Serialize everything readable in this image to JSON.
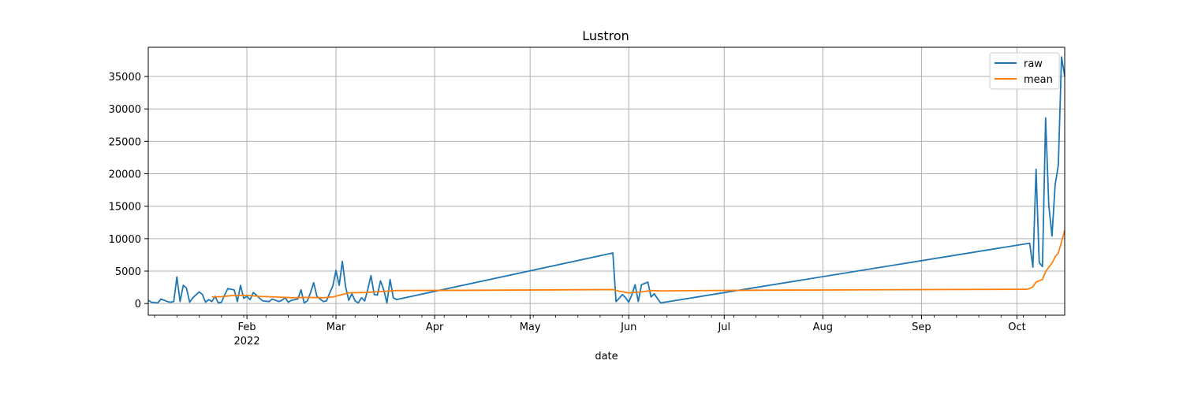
{
  "chart_data": {
    "type": "line",
    "title": "Lustron",
    "xlabel": "date",
    "ylabel": "",
    "x_range": [
      "2022-01-01",
      "2022-10-16"
    ],
    "ylim": [
      -1800,
      39500
    ],
    "grid": true,
    "legend_position": "top-right",
    "x_ticks": [
      {
        "date": "2022-02-01",
        "label": "Feb",
        "sublabel": "2022"
      },
      {
        "date": "2022-03-01",
        "label": "Mar"
      },
      {
        "date": "2022-04-01",
        "label": "Apr"
      },
      {
        "date": "2022-05-01",
        "label": "May"
      },
      {
        "date": "2022-06-01",
        "label": "Jun"
      },
      {
        "date": "2022-07-01",
        "label": "Jul"
      },
      {
        "date": "2022-08-01",
        "label": "Aug"
      },
      {
        "date": "2022-09-01",
        "label": "Sep"
      },
      {
        "date": "2022-10-01",
        "label": "Oct"
      }
    ],
    "y_ticks": [
      0,
      5000,
      10000,
      15000,
      20000,
      25000,
      30000,
      35000
    ],
    "series": [
      {
        "name": "raw",
        "color": "#1f77b4",
        "points": [
          [
            "2022-01-01",
            500
          ],
          [
            "2022-01-02",
            200
          ],
          [
            "2022-01-04",
            100
          ],
          [
            "2022-01-05",
            700
          ],
          [
            "2022-01-07",
            300
          ],
          [
            "2022-01-08",
            200
          ],
          [
            "2022-01-09",
            300
          ],
          [
            "2022-01-10",
            4100
          ],
          [
            "2022-01-11",
            300
          ],
          [
            "2022-01-12",
            2800
          ],
          [
            "2022-01-13",
            2400
          ],
          [
            "2022-01-14",
            200
          ],
          [
            "2022-01-15",
            900
          ],
          [
            "2022-01-17",
            1800
          ],
          [
            "2022-01-18",
            1400
          ],
          [
            "2022-01-19",
            200
          ],
          [
            "2022-01-20",
            600
          ],
          [
            "2022-01-21",
            300
          ],
          [
            "2022-01-22",
            1100
          ],
          [
            "2022-01-23",
            100
          ],
          [
            "2022-01-24",
            200
          ],
          [
            "2022-01-25",
            1300
          ],
          [
            "2022-01-26",
            2300
          ],
          [
            "2022-01-28",
            2100
          ],
          [
            "2022-01-29",
            300
          ],
          [
            "2022-01-30",
            2800
          ],
          [
            "2022-01-31",
            800
          ],
          [
            "2022-02-01",
            1100
          ],
          [
            "2022-02-02",
            600
          ],
          [
            "2022-02-03",
            1700
          ],
          [
            "2022-02-04",
            1300
          ],
          [
            "2022-02-05",
            800
          ],
          [
            "2022-02-06",
            400
          ],
          [
            "2022-02-08",
            300
          ],
          [
            "2022-02-09",
            700
          ],
          [
            "2022-02-11",
            300
          ],
          [
            "2022-02-12",
            500
          ],
          [
            "2022-02-13",
            900
          ],
          [
            "2022-02-14",
            200
          ],
          [
            "2022-02-15",
            500
          ],
          [
            "2022-02-17",
            700
          ],
          [
            "2022-02-18",
            2100
          ],
          [
            "2022-02-19",
            100
          ],
          [
            "2022-02-20",
            400
          ],
          [
            "2022-02-21",
            1700
          ],
          [
            "2022-02-22",
            3200
          ],
          [
            "2022-02-23",
            1100
          ],
          [
            "2022-02-25",
            300
          ],
          [
            "2022-02-26",
            400
          ],
          [
            "2022-02-27",
            1600
          ],
          [
            "2022-02-28",
            2700
          ],
          [
            "2022-03-01",
            5100
          ],
          [
            "2022-03-02",
            2800
          ],
          [
            "2022-03-03",
            6500
          ],
          [
            "2022-03-04",
            2600
          ],
          [
            "2022-03-05",
            500
          ],
          [
            "2022-03-06",
            1500
          ],
          [
            "2022-03-07",
            400
          ],
          [
            "2022-03-08",
            100
          ],
          [
            "2022-03-09",
            900
          ],
          [
            "2022-03-10",
            400
          ],
          [
            "2022-03-11",
            2200
          ],
          [
            "2022-03-12",
            4300
          ],
          [
            "2022-03-13",
            1400
          ],
          [
            "2022-03-14",
            1300
          ],
          [
            "2022-03-15",
            3500
          ],
          [
            "2022-03-16",
            2100
          ],
          [
            "2022-03-17",
            100
          ],
          [
            "2022-03-18",
            3700
          ],
          [
            "2022-03-19",
            900
          ],
          [
            "2022-03-20",
            600
          ],
          [
            "2022-05-27",
            7800
          ],
          [
            "2022-05-28",
            300
          ],
          [
            "2022-05-29",
            800
          ],
          [
            "2022-05-30",
            1400
          ],
          [
            "2022-05-31",
            900
          ],
          [
            "2022-06-01",
            200
          ],
          [
            "2022-06-02",
            1400
          ],
          [
            "2022-06-03",
            2900
          ],
          [
            "2022-06-04",
            300
          ],
          [
            "2022-06-05",
            2900
          ],
          [
            "2022-06-07",
            3300
          ],
          [
            "2022-06-08",
            1000
          ],
          [
            "2022-06-09",
            1500
          ],
          [
            "2022-06-11",
            100
          ],
          [
            "2022-10-05",
            9300
          ],
          [
            "2022-10-06",
            5600
          ],
          [
            "2022-10-07",
            20700
          ],
          [
            "2022-10-08",
            6300
          ],
          [
            "2022-10-09",
            5700
          ],
          [
            "2022-10-10",
            28600
          ],
          [
            "2022-10-11",
            15200
          ],
          [
            "2022-10-12",
            10400
          ],
          [
            "2022-10-13",
            18300
          ],
          [
            "2022-10-14",
            21300
          ],
          [
            "2022-10-15",
            38000
          ],
          [
            "2022-10-16",
            35000
          ]
        ]
      },
      {
        "name": "mean",
        "color": "#ff7f0e",
        "points": [
          [
            "2022-01-21",
            1000
          ],
          [
            "2022-01-24",
            1050
          ],
          [
            "2022-01-28",
            1250
          ],
          [
            "2022-02-01",
            1250
          ],
          [
            "2022-02-05",
            1100
          ],
          [
            "2022-02-10",
            1000
          ],
          [
            "2022-02-15",
            900
          ],
          [
            "2022-02-20",
            950
          ],
          [
            "2022-02-25",
            900
          ],
          [
            "2022-02-28",
            1000
          ],
          [
            "2022-03-03",
            1400
          ],
          [
            "2022-03-05",
            1650
          ],
          [
            "2022-03-10",
            1700
          ],
          [
            "2022-03-15",
            1850
          ],
          [
            "2022-03-20",
            2000
          ],
          [
            "2022-04-15",
            2050
          ],
          [
            "2022-05-27",
            2150
          ],
          [
            "2022-05-29",
            1900
          ],
          [
            "2022-06-01",
            1650
          ],
          [
            "2022-06-05",
            1800
          ],
          [
            "2022-06-08",
            2000
          ],
          [
            "2022-06-11",
            1950
          ],
          [
            "2022-07-10",
            2050
          ],
          [
            "2022-10-04",
            2200
          ],
          [
            "2022-10-05",
            2300
          ],
          [
            "2022-10-06",
            2600
          ],
          [
            "2022-10-07",
            3300
          ],
          [
            "2022-10-09",
            3700
          ],
          [
            "2022-10-10",
            4900
          ],
          [
            "2022-10-11",
            5600
          ],
          [
            "2022-10-12",
            6200
          ],
          [
            "2022-10-13",
            7200
          ],
          [
            "2022-10-14",
            7800
          ],
          [
            "2022-10-15",
            9500
          ],
          [
            "2022-10-16",
            11300
          ]
        ]
      }
    ]
  }
}
